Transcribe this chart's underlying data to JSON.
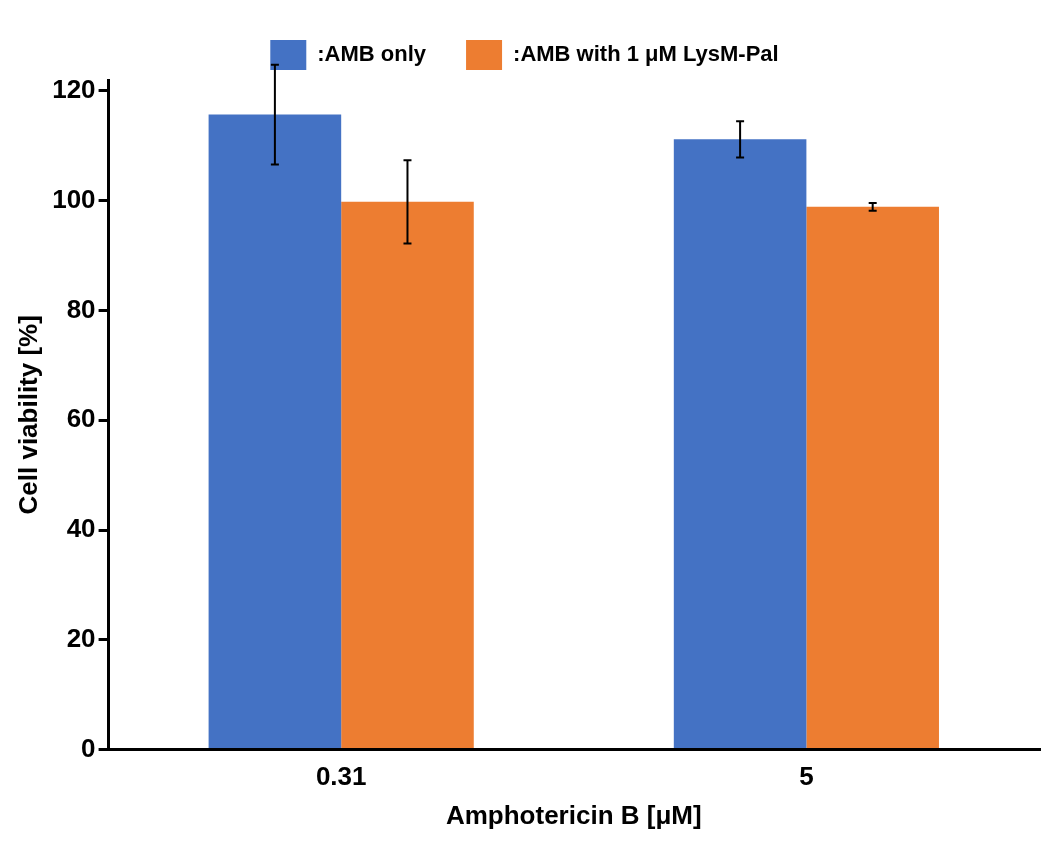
{
  "chart_data": {
    "type": "bar",
    "xlabel": "Amphotericin B [μM]",
    "ylabel": "Cell viability [%]",
    "categories": [
      "0.31",
      "5"
    ],
    "series": [
      {
        "name": ":AMB only",
        "color": "#4472c4",
        "values": [
          115.7,
          111.2
        ],
        "errors": [
          9.1,
          3.3
        ]
      },
      {
        "name": ":AMB with 1 μM LysM-Pal",
        "color": "#ed7d31",
        "values": [
          99.8,
          98.9
        ],
        "errors": [
          7.6,
          0.7
        ]
      }
    ],
    "ylim": [
      0,
      122
    ],
    "yticks": [
      0,
      20,
      40,
      60,
      80,
      100,
      120
    ],
    "grid": false,
    "legend": "top"
  }
}
